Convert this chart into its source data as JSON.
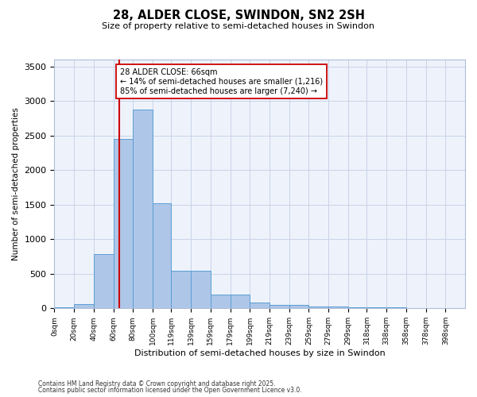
{
  "title": "28, ALDER CLOSE, SWINDON, SN2 2SH",
  "subtitle": "Size of property relative to semi-detached houses in Swindon",
  "xlabel": "Distribution of semi-detached houses by size in Swindon",
  "ylabel": "Number of semi-detached properties",
  "annotation_title": "28 ALDER CLOSE: 66sqm",
  "annotation_line1": "← 14% of semi-detached houses are smaller (1,216)",
  "annotation_line2": "85% of semi-detached houses are larger (7,240) →",
  "property_size": 66,
  "bar_labels": [
    "0sqm",
    "20sqm",
    "40sqm",
    "60sqm",
    "80sqm",
    "100sqm",
    "119sqm",
    "139sqm",
    "159sqm",
    "179sqm",
    "199sqm",
    "219sqm",
    "239sqm",
    "259sqm",
    "279sqm",
    "299sqm",
    "318sqm",
    "338sqm",
    "358sqm",
    "378sqm",
    "398sqm"
  ],
  "bar_values": [
    20,
    65,
    790,
    2450,
    2880,
    1520,
    545,
    545,
    195,
    195,
    85,
    50,
    50,
    30,
    30,
    15,
    10,
    10,
    5,
    5,
    2
  ],
  "bin_edges": [
    0,
    20,
    40,
    60,
    80,
    100,
    119,
    139,
    159,
    179,
    199,
    219,
    239,
    259,
    279,
    299,
    318,
    338,
    358,
    378,
    398
  ],
  "bar_color": "#aec6e8",
  "bar_edge_color": "#5a9fd4",
  "vline_color": "#cc0000",
  "vline_x": 66,
  "annotation_box_color": "#cc0000",
  "background_color": "#eef2fb",
  "grid_color": "#c8d4e8",
  "footer_line1": "Contains HM Land Registry data © Crown copyright and database right 2025.",
  "footer_line2": "Contains public sector information licensed under the Open Government Licence v3.0.",
  "ylim": [
    0,
    3600
  ],
  "yticks": [
    0,
    500,
    1000,
    1500,
    2000,
    2500,
    3000,
    3500
  ]
}
